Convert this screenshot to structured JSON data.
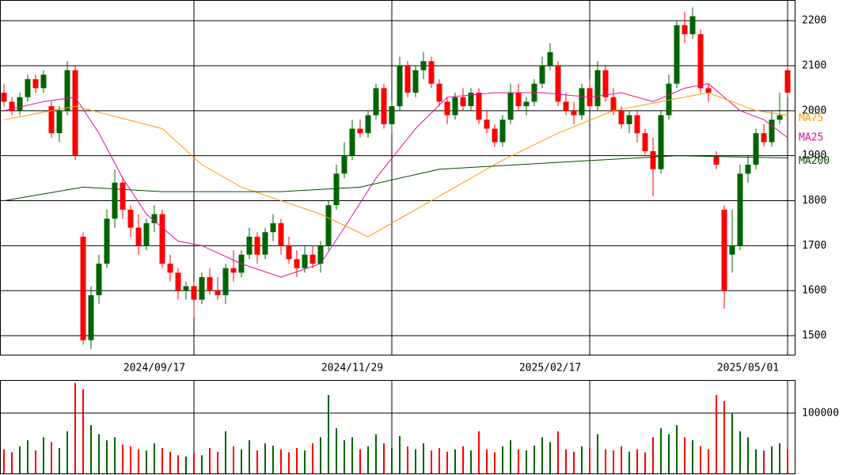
{
  "chart_data": {
    "type": "candlestick",
    "xlim": [
      -0.5,
      100
    ],
    "xticks": [
      {
        "value": 24,
        "label": "2024/09/17"
      },
      {
        "value": 49,
        "label": "2024/11/29"
      },
      {
        "value": 74,
        "label": "2025/02/17"
      },
      {
        "value": 99,
        "label": "2025/05/01"
      }
    ],
    "ylim": [
      1456,
      2246
    ],
    "yticks": [
      1500,
      1600,
      1700,
      1800,
      1900,
      2000,
      2100,
      2200
    ],
    "volume_ylim": [
      0,
      155000
    ],
    "volume_yticks": [
      100000
    ],
    "up_color": "#006400",
    "down_color": "#ff0000",
    "open": [
      2040,
      2020,
      2000,
      2030,
      2070,
      2050,
      2010,
      1950,
      2000,
      2090,
      1720,
      1490,
      1590,
      1660,
      1760,
      1840,
      1780,
      1740,
      1700,
      1750,
      1770,
      1660,
      1640,
      1600,
      1610,
      1580,
      1630,
      1600,
      1590,
      1650,
      1640,
      1680,
      1720,
      1680,
      1730,
      1750,
      1700,
      1670,
      1650,
      1680,
      1660,
      1700,
      1790,
      1860,
      1900,
      1960,
      1950,
      1990,
      2050,
      1970,
      2010,
      2100,
      2040,
      2090,
      2110,
      2060,
      2020,
      1990,
      2030,
      2010,
      2040,
      1980,
      1960,
      1930,
      1980,
      2040,
      2010,
      2020,
      2060,
      2100,
      2100,
      2020,
      2000,
      1990,
      2050,
      2010,
      2090,
      2030,
      2000,
      1970,
      1990,
      1950,
      1910,
      1870,
      1990,
      2060,
      2190,
      2170,
      2170,
      2050,
      1900,
      1780,
      1680,
      1700,
      1860,
      1880,
      1950,
      1930,
      1980,
      2090
    ],
    "high": [
      2060,
      2030,
      2040,
      2080,
      2080,
      2090,
      2020,
      2010,
      2110,
      2100,
      1730,
      1610,
      1680,
      1780,
      1870,
      1850,
      1790,
      1770,
      1760,
      1790,
      1780,
      1680,
      1650,
      1620,
      1620,
      1640,
      1650,
      1630,
      1660,
      1690,
      1690,
      1740,
      1730,
      1740,
      1770,
      1760,
      1720,
      1690,
      1700,
      1700,
      1710,
      1800,
      1880,
      1930,
      1980,
      1980,
      2000,
      2060,
      2060,
      2020,
      2120,
      2110,
      2100,
      2130,
      2120,
      2070,
      2030,
      2040,
      2050,
      2050,
      2050,
      2000,
      1970,
      1990,
      2060,
      2060,
      2030,
      2070,
      2120,
      2150,
      2110,
      2040,
      2020,
      2060,
      2070,
      2110,
      2100,
      2050,
      2010,
      2000,
      2000,
      1960,
      1940,
      2000,
      2080,
      2200,
      2220,
      2230,
      2180,
      2060,
      1910,
      1790,
      1780,
      1880,
      1900,
      1960,
      1970,
      2000,
      2040,
      2100
    ],
    "low": [
      2010,
      1990,
      1990,
      2020,
      2040,
      2040,
      1940,
      1930,
      1990,
      1890,
      1480,
      1470,
      1570,
      1650,
      1740,
      1760,
      1720,
      1680,
      1690,
      1730,
      1650,
      1620,
      1580,
      1580,
      1540,
      1570,
      1590,
      1580,
      1570,
      1620,
      1630,
      1670,
      1660,
      1670,
      1710,
      1680,
      1660,
      1630,
      1640,
      1650,
      1640,
      1690,
      1780,
      1850,
      1890,
      1940,
      1940,
      1980,
      1960,
      1950,
      2000,
      2030,
      2030,
      2070,
      2050,
      2010,
      1970,
      1980,
      2000,
      2000,
      1970,
      1950,
      1920,
      1920,
      1970,
      2000,
      1990,
      2010,
      2050,
      2090,
      2010,
      1990,
      1970,
      1980,
      2000,
      2000,
      2020,
      1990,
      1960,
      1950,
      1930,
      1900,
      1810,
      1860,
      1980,
      2050,
      2150,
      2160,
      2040,
      2020,
      1870,
      1560,
      1640,
      1690,
      1840,
      1870,
      1920,
      1920,
      1970,
      2030
    ],
    "close": [
      2020,
      2000,
      2030,
      2070,
      2050,
      2080,
      1950,
      2000,
      2090,
      1900,
      1490,
      1590,
      1660,
      1760,
      1840,
      1780,
      1740,
      1700,
      1750,
      1770,
      1660,
      1640,
      1600,
      1610,
      1580,
      1630,
      1600,
      1590,
      1650,
      1640,
      1680,
      1720,
      1680,
      1730,
      1750,
      1700,
      1670,
      1650,
      1680,
      1660,
      1700,
      1790,
      1860,
      1900,
      1960,
      1950,
      1990,
      2050,
      1970,
      2010,
      2100,
      2040,
      2090,
      2110,
      2060,
      2020,
      1990,
      2030,
      2010,
      2040,
      1980,
      1960,
      1930,
      1980,
      2040,
      2010,
      2020,
      2060,
      2100,
      2130,
      2020,
      2000,
      1990,
      2050,
      2010,
      2090,
      2030,
      2000,
      1970,
      1990,
      1950,
      1910,
      1870,
      1990,
      2060,
      2190,
      2170,
      2210,
      2050,
      2040,
      1880,
      1600,
      1700,
      1860,
      1880,
      1950,
      1930,
      1980,
      1990,
      2040
    ],
    "volume": [
      40000,
      35000,
      45000,
      55000,
      38000,
      60000,
      52000,
      42000,
      70000,
      150000,
      140000,
      80000,
      65000,
      55000,
      60000,
      48000,
      45000,
      40000,
      38000,
      50000,
      42000,
      36000,
      30000,
      28000,
      34000,
      30000,
      42000,
      36000,
      70000,
      45000,
      40000,
      55000,
      38000,
      50000,
      46000,
      40000,
      35000,
      42000,
      38000,
      50000,
      60000,
      130000,
      75000,
      55000,
      60000,
      40000,
      45000,
      65000,
      50000,
      42000,
      62000,
      45000,
      40000,
      50000,
      38000,
      42000,
      36000,
      40000,
      45000,
      38000,
      70000,
      40000,
      35000,
      45000,
      55000,
      40000,
      38000,
      46000,
      60000,
      52000,
      70000,
      40000,
      36000,
      45000,
      42000,
      65000,
      40000,
      38000,
      45000,
      36000,
      40000,
      35000,
      60000,
      75000,
      65000,
      80000,
      60000,
      55000,
      45000,
      40000,
      130000,
      120000,
      100000,
      70000,
      60000,
      40000,
      38000,
      45000,
      50000,
      40000
    ],
    "series": [
      {
        "name": "MA25",
        "color": "#e0109c",
        "x": [
          0,
          5,
          9,
          12,
          15,
          18,
          22,
          25,
          30,
          35,
          40,
          43,
          47,
          52,
          56,
          62,
          68,
          74,
          78,
          82,
          86,
          89,
          93,
          96,
          99
        ],
        "values": [
          2000,
          2020,
          2030,
          1950,
          1850,
          1770,
          1710,
          1700,
          1660,
          1630,
          1660,
          1740,
          1850,
          1960,
          2030,
          2040,
          2040,
          2030,
          2040,
          2020,
          2050,
          2060,
          2000,
          1980,
          1940
        ]
      },
      {
        "name": "MA75",
        "color": "#ff9900",
        "x": [
          0,
          9,
          20,
          25,
          30,
          40,
          46,
          50,
          56,
          63,
          70,
          77,
          83,
          89,
          95,
          99
        ],
        "values": [
          1980,
          2010,
          1960,
          1880,
          1830,
          1770,
          1720,
          1760,
          1820,
          1890,
          1950,
          2000,
          2020,
          2040,
          2000,
          1990
        ]
      },
      {
        "name": "MA200",
        "color": "#004d00",
        "x": [
          0,
          10,
          20,
          35,
          45,
          55,
          65,
          75,
          85,
          99
        ],
        "values": [
          1800,
          1830,
          1820,
          1820,
          1830,
          1870,
          1880,
          1890,
          1900,
          1895
        ]
      }
    ]
  }
}
